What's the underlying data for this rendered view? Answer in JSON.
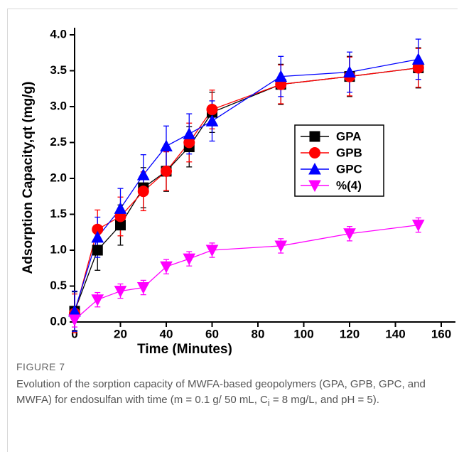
{
  "chart_data": {
    "type": "line",
    "xlabel": "Time (Minutes)",
    "ylabel": "Adsorption Capacity,qt (mg/g)",
    "xlim": [
      0,
      160
    ],
    "xticks": [
      0,
      20,
      40,
      60,
      80,
      100,
      120,
      140,
      160
    ],
    "ylim": [
      0,
      4
    ],
    "yticks": [
      {
        "value": 0,
        "label": "0.0"
      },
      0.5,
      {
        "value": 1,
        "label": "1.0"
      },
      1.5,
      {
        "value": 2,
        "label": "2.0"
      },
      2.5,
      {
        "value": 3,
        "label": "3.0"
      },
      3.5,
      {
        "value": 4,
        "label": "4.0"
      }
    ],
    "legend": "center right",
    "x": [
      0,
      10,
      20,
      30,
      40,
      50,
      60,
      90,
      120,
      150
    ],
    "series": [
      {
        "name": "GPA",
        "color": "#000000",
        "marker": "square",
        "values": [
          0.15,
          1.0,
          1.35,
          1.87,
          2.1,
          2.44,
          2.92,
          3.31,
          3.42,
          3.54
        ],
        "errors": [
          0.27,
          0.28,
          0.28,
          0.28,
          0.28,
          0.28,
          0.28,
          0.28,
          0.28,
          0.28
        ]
      },
      {
        "name": "GPB",
        "color": "#ff0000",
        "marker": "circle",
        "values": [
          0.12,
          1.29,
          1.47,
          1.82,
          2.1,
          2.5,
          2.96,
          3.31,
          3.42,
          3.54
        ],
        "errors": [
          0.27,
          0.27,
          0.27,
          0.27,
          0.27,
          0.27,
          0.27,
          0.27,
          0.27,
          0.27
        ]
      },
      {
        "name": "GPC",
        "color": "#0000ff",
        "marker": "triangle-up",
        "values": [
          0.15,
          1.18,
          1.58,
          2.05,
          2.45,
          2.62,
          2.8,
          3.42,
          3.48,
          3.66
        ],
        "errors": [
          0.28,
          0.28,
          0.28,
          0.28,
          0.28,
          0.28,
          0.28,
          0.28,
          0.28,
          0.28
        ]
      },
      {
        "name": "%(4)",
        "color": "#ff00ff",
        "marker": "triangle-down",
        "values": [
          0.03,
          0.31,
          0.43,
          0.48,
          0.77,
          0.88,
          1.0,
          1.06,
          1.23,
          1.35
        ],
        "errors": [
          0.1,
          0.1,
          0.1,
          0.1,
          0.1,
          0.1,
          0.1,
          0.1,
          0.1,
          0.1
        ]
      }
    ]
  },
  "figure": {
    "label": "FIGURE 7",
    "caption": [
      "Evolution of the sorption capacity of MWFA-based geopolymers (GPA, GPB, GPC, and MWFA) for endosulfan with time (m = 0.1 g/ 50 mL, C",
      "i",
      " = 8 mg/L, and pH = 5)."
    ]
  }
}
